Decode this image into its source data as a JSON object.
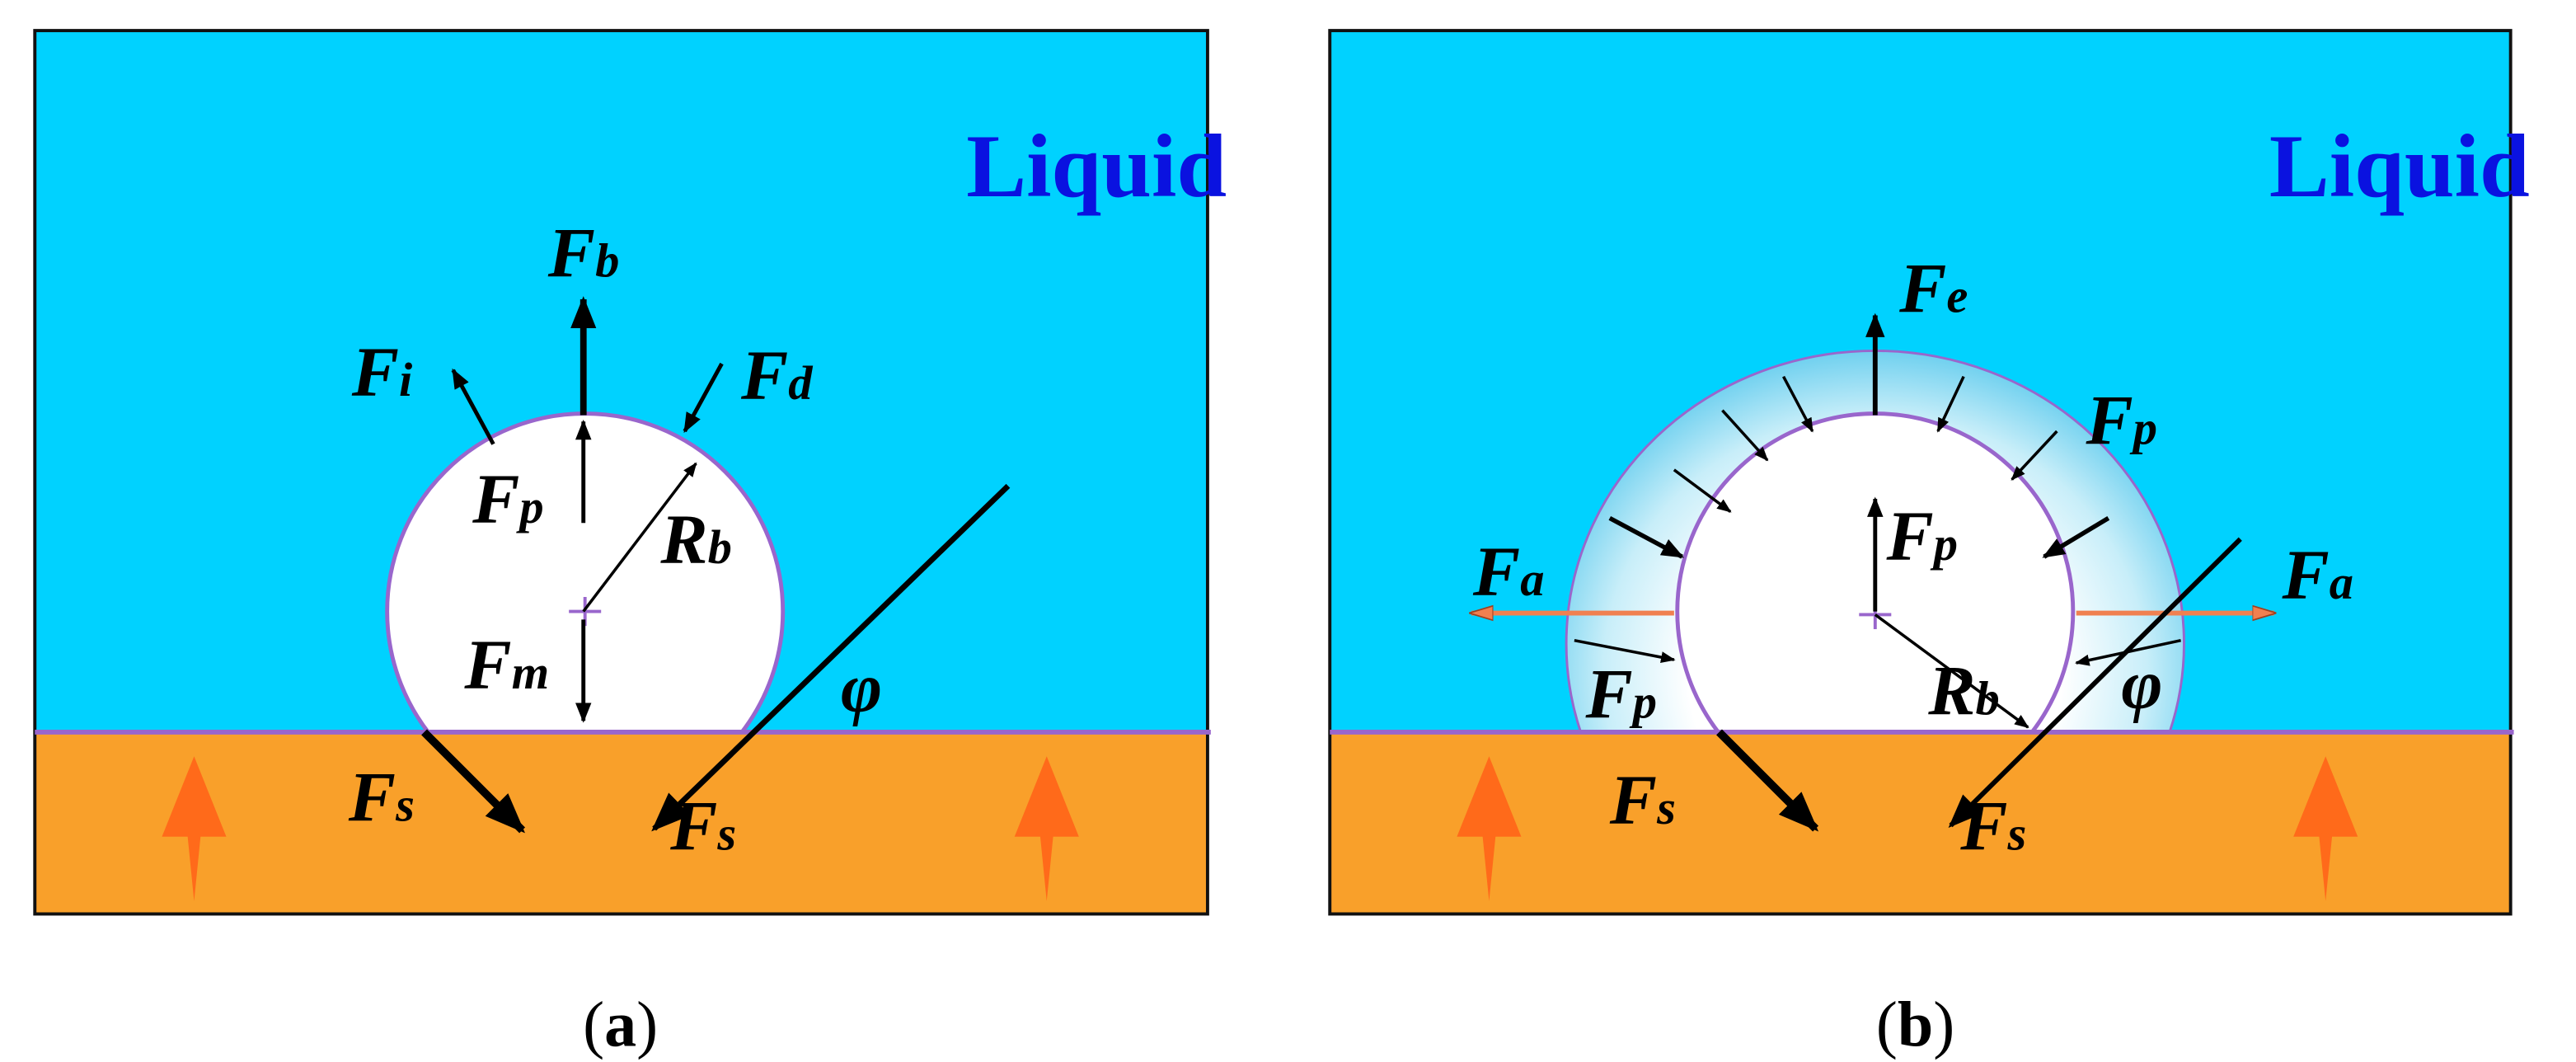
{
  "colors": {
    "liquid": "#00d2ff",
    "liquid_text": "#0a12e0",
    "substrate": "#f9a02a",
    "heat_arrow": "#ff6a1a",
    "interface": "#9966cc",
    "adhesion_arrow": "#f08050"
  },
  "panel_a": {
    "region_label": "Liquid",
    "caption": {
      "open": "(",
      "letter": "a",
      "close": ")"
    },
    "forces": {
      "Fb": {
        "main": "F",
        "sub": "b"
      },
      "Fi": {
        "main": "F",
        "sub": "i"
      },
      "Fd": {
        "main": "F",
        "sub": "d"
      },
      "Fp": {
        "main": "F",
        "sub": "p"
      },
      "Rb": {
        "main": "R",
        "sub": "b"
      },
      "Fm": {
        "main": "F",
        "sub": "m"
      },
      "Fs_left": {
        "main": "F",
        "sub": "s"
      },
      "Fs_right": {
        "main": "F",
        "sub": "s"
      },
      "phi": "φ"
    }
  },
  "panel_b": {
    "region_label": "Liquid",
    "caption": {
      "open": "(",
      "letter": "b",
      "close": ")"
    },
    "forces": {
      "Fe": {
        "main": "F",
        "sub": "e"
      },
      "Fp_outer": {
        "main": "F",
        "sub": "p"
      },
      "Fp_inner": {
        "main": "F",
        "sub": "p"
      },
      "Fa_left": {
        "main": "F",
        "sub": "a"
      },
      "Fa_right": {
        "main": "F",
        "sub": "a"
      },
      "Fp_left": {
        "main": "F",
        "sub": "p"
      },
      "Rb": {
        "main": "R",
        "sub": "b"
      },
      "Fs_left": {
        "main": "F",
        "sub": "s"
      },
      "Fs_right": {
        "main": "F",
        "sub": "s"
      },
      "phi": "φ"
    }
  }
}
